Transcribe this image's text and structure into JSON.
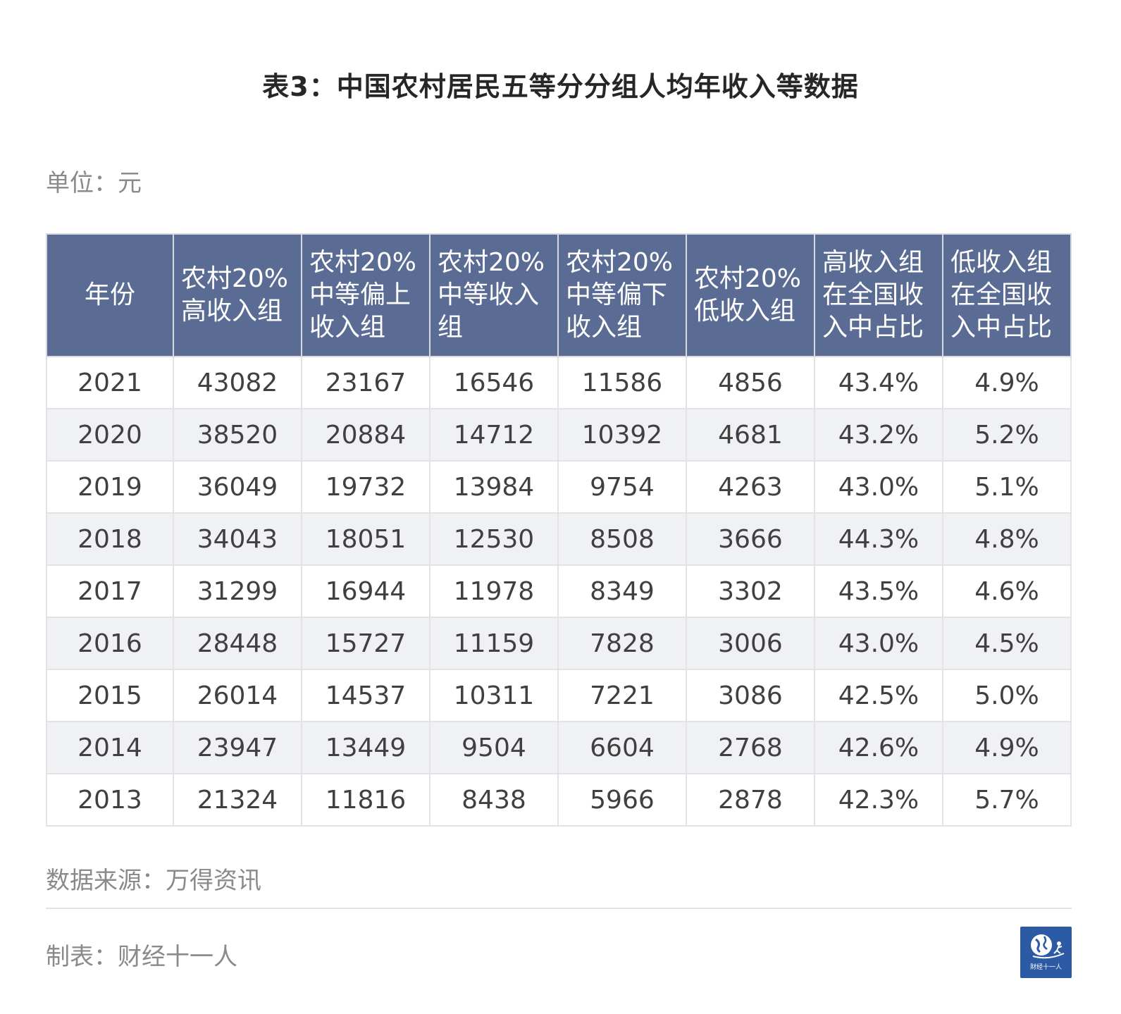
{
  "title": "表3：中国农村居民五等分分组人均年收入等数据",
  "unit": "单位：元",
  "source": "数据来源：万得资讯",
  "credit": "制表：财经十一人",
  "logo_text": "财经十一人",
  "colors": {
    "header_bg": "#5a6b94",
    "stripe_bg": "#f0f1f4"
  },
  "icons": {
    "logo": "globe-runner-icon"
  },
  "chart_data": {
    "type": "table",
    "title": "表3：中国农村居民五等分分组人均年收入等数据",
    "columns": [
      "年份",
      "农村20%高收入组",
      "农村20%中等偏上收入组",
      "农村20%中等收入组",
      "农村20%中等偏下收入组",
      "农村20%低收入组",
      "高收入组在全国收入中占比",
      "低收入组在全国收入中占比"
    ],
    "rows": [
      [
        "2021",
        "43082",
        "23167",
        "16546",
        "11586",
        "4856",
        "43.4%",
        "4.9%"
      ],
      [
        "2020",
        "38520",
        "20884",
        "14712",
        "10392",
        "4681",
        "43.2%",
        "5.2%"
      ],
      [
        "2019",
        "36049",
        "19732",
        "13984",
        "9754",
        "4263",
        "43.0%",
        "5.1%"
      ],
      [
        "2018",
        "34043",
        "18051",
        "12530",
        "8508",
        "3666",
        "44.3%",
        "4.8%"
      ],
      [
        "2017",
        "31299",
        "16944",
        "11978",
        "8349",
        "3302",
        "43.5%",
        "4.6%"
      ],
      [
        "2016",
        "28448",
        "15727",
        "11159",
        "7828",
        "3006",
        "43.0%",
        "4.5%"
      ],
      [
        "2015",
        "26014",
        "14537",
        "10311",
        "7221",
        "3086",
        "42.5%",
        "5.0%"
      ],
      [
        "2014",
        "23947",
        "13449",
        "9504",
        "6604",
        "2768",
        "42.6%",
        "4.9%"
      ],
      [
        "2013",
        "21324",
        "11816",
        "8438",
        "5966",
        "2878",
        "42.3%",
        "5.7%"
      ]
    ]
  }
}
